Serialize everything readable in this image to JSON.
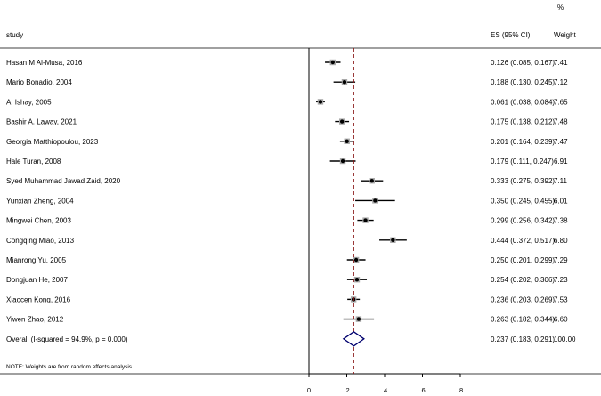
{
  "chart_data": {
    "type": "forest",
    "headers": {
      "study": "study",
      "es": "ES (95% CI)",
      "weight_top": "%",
      "weight": "Weight"
    },
    "studies": [
      {
        "name": "Hasan M Al-Musa,  2016",
        "es": 0.126,
        "lo": 0.085,
        "hi": 0.167,
        "es_text": "0.126 (0.085, 0.167)",
        "weight": "7.41"
      },
      {
        "name": "Mario Bonadio,  2004",
        "es": 0.188,
        "lo": 0.13,
        "hi": 0.245,
        "es_text": "0.188 (0.130, 0.245)",
        "weight": "7.12"
      },
      {
        "name": "A. Ishay,  2005",
        "es": 0.061,
        "lo": 0.038,
        "hi": 0.084,
        "es_text": "0.061 (0.038, 0.084)",
        "weight": "7.65"
      },
      {
        "name": "Bashir A. Laway,  2021",
        "es": 0.175,
        "lo": 0.138,
        "hi": 0.212,
        "es_text": "0.175 (0.138, 0.212)",
        "weight": "7.48"
      },
      {
        "name": "Georgia Matthiopoulou,  2023",
        "es": 0.201,
        "lo": 0.164,
        "hi": 0.239,
        "es_text": "0.201 (0.164, 0.239)",
        "weight": "7.47"
      },
      {
        "name": "Hale Turan,  2008",
        "es": 0.179,
        "lo": 0.111,
        "hi": 0.247,
        "es_text": "0.179 (0.111, 0.247)",
        "weight": "6.91"
      },
      {
        "name": "Syed Muhammad Jawad Zaid,  2020",
        "es": 0.333,
        "lo": 0.275,
        "hi": 0.392,
        "es_text": "0.333 (0.275, 0.392)",
        "weight": "7.11"
      },
      {
        "name": "Yunxian Zheng,  2004",
        "es": 0.35,
        "lo": 0.245,
        "hi": 0.455,
        "es_text": "0.350 (0.245, 0.455)",
        "weight": "6.01"
      },
      {
        "name": "Mingwei Chen,  2003",
        "es": 0.299,
        "lo": 0.256,
        "hi": 0.342,
        "es_text": "0.299 (0.256, 0.342)",
        "weight": "7.38"
      },
      {
        "name": "Congqing Miao,  2013",
        "es": 0.444,
        "lo": 0.372,
        "hi": 0.517,
        "es_text": "0.444 (0.372, 0.517)",
        "weight": "6.80"
      },
      {
        "name": "Mianrong Yu,  2005",
        "es": 0.25,
        "lo": 0.201,
        "hi": 0.299,
        "es_text": "0.250 (0.201, 0.299)",
        "weight": "7.29"
      },
      {
        "name": "Dongjuan He,  2007",
        "es": 0.254,
        "lo": 0.202,
        "hi": 0.306,
        "es_text": "0.254 (0.202, 0.306)",
        "weight": "7.23"
      },
      {
        "name": "Xiaocen Kong,  2016",
        "es": 0.236,
        "lo": 0.203,
        "hi": 0.269,
        "es_text": "0.236 (0.203, 0.269)",
        "weight": "7.53"
      },
      {
        "name": "Yiwen Zhao,  2012",
        "es": 0.263,
        "lo": 0.182,
        "hi": 0.344,
        "es_text": "0.263 (0.182, 0.344)",
        "weight": "6.60"
      }
    ],
    "overall": {
      "label": "Overall  (I-squared = 94.9%, p = 0.000)",
      "es": 0.237,
      "lo": 0.183,
      "hi": 0.291,
      "es_text": "0.237 (0.183, 0.291)",
      "weight": "100.00"
    },
    "note": "NOTE: Weights are from random effects analysis",
    "x_ticks": [
      {
        "value": 0,
        "label": "0"
      },
      {
        "value": 0.2,
        "label": ".2"
      },
      {
        "value": 0.4,
        "label": ".4"
      },
      {
        "value": 0.6,
        "label": ".6"
      },
      {
        "value": 0.8,
        "label": ".8"
      }
    ],
    "xlim": [
      0,
      0.8
    ],
    "null_line": 0,
    "colors": {
      "point": "#000000",
      "box": "#a9a9a9",
      "ci": "#000000",
      "overall_line": "#8b1a1a",
      "diamond": "#00006e"
    }
  }
}
